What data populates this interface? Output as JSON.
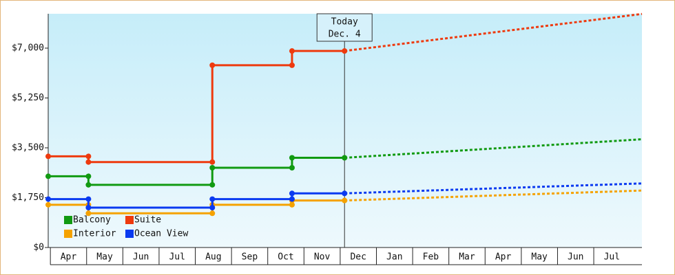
{
  "chart_data": {
    "type": "step-line",
    "xlim": [
      -0.06,
      16.33
    ],
    "ylim": [
      0,
      8207
    ],
    "yticks": [
      {
        "value": 0,
        "label": "$0"
      },
      {
        "value": 1750,
        "label": "$1,750"
      },
      {
        "value": 3500,
        "label": "$3,500"
      },
      {
        "value": 5250,
        "label": "$5,250"
      },
      {
        "value": 7000,
        "label": "$7,000"
      }
    ],
    "xticks": [
      {
        "value": 0.5,
        "label": "Apr"
      },
      {
        "value": 1.5,
        "label": "May"
      },
      {
        "value": 2.5,
        "label": "Jun"
      },
      {
        "value": 3.5,
        "label": "Jul"
      },
      {
        "value": 4.5,
        "label": "Aug"
      },
      {
        "value": 5.5,
        "label": "Sep"
      },
      {
        "value": 6.5,
        "label": "Oct"
      },
      {
        "value": 7.5,
        "label": "Nov"
      },
      {
        "value": 8.5,
        "label": "Dec"
      },
      {
        "value": 9.5,
        "label": "Jan"
      },
      {
        "value": 10.5,
        "label": "Feb"
      },
      {
        "value": 11.5,
        "label": "Mar"
      },
      {
        "value": 12.5,
        "label": "Apr"
      },
      {
        "value": 13.5,
        "label": "May"
      },
      {
        "value": 14.5,
        "label": "Jun"
      },
      {
        "value": 15.5,
        "label": "Jul"
      }
    ],
    "annotation": {
      "x": 8.12,
      "lines": [
        "Today",
        "Dec. 4"
      ]
    },
    "series": [
      {
        "name": "Balcony",
        "color": "#119a11",
        "x": [
          -0.06,
          1.05,
          1.05,
          4.47,
          4.47,
          6.67,
          6.67,
          8.12
        ],
        "values": [
          2500,
          2500,
          2200,
          2200,
          2800,
          2800,
          3150,
          3150
        ],
        "forecast": {
          "x": [
            8.12,
            16.33
          ],
          "values": [
            3150,
            3800
          ]
        }
      },
      {
        "name": "Suite",
        "color": "#ee3a0e",
        "x": [
          -0.06,
          1.05,
          1.05,
          4.47,
          4.47,
          6.67,
          6.67,
          8.12
        ],
        "values": [
          3200,
          3200,
          3000,
          3000,
          6400,
          6400,
          6900,
          6900
        ],
        "forecast": {
          "x": [
            8.12,
            16.33
          ],
          "values": [
            6900,
            8200
          ]
        }
      },
      {
        "name": "Interior",
        "color": "#f5a200",
        "x": [
          -0.06,
          1.05,
          1.05,
          4.47,
          4.47,
          6.67,
          6.67,
          8.12
        ],
        "values": [
          1500,
          1500,
          1200,
          1200,
          1500,
          1500,
          1650,
          1650
        ],
        "forecast": {
          "x": [
            8.12,
            16.33
          ],
          "values": [
            1650,
            2000
          ]
        }
      },
      {
        "name": "Ocean View",
        "color": "#0a3af0",
        "x": [
          -0.06,
          1.05,
          1.05,
          4.47,
          4.47,
          6.67,
          6.67,
          8.12
        ],
        "values": [
          1700,
          1700,
          1400,
          1400,
          1700,
          1700,
          1900,
          1900
        ],
        "forecast": {
          "x": [
            8.12,
            16.33
          ],
          "values": [
            1900,
            2250
          ]
        }
      }
    ]
  }
}
